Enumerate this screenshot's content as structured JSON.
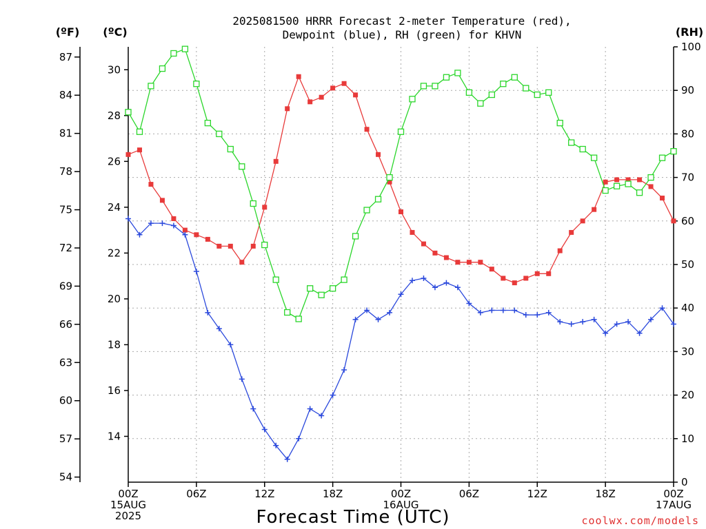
{
  "chart_data": {
    "type": "line",
    "title_lines": [
      "2025081500 HRRR Forecast 2-meter Temperature (red),",
      "Dewpoint (blue), RH (green) for KHVN"
    ],
    "xlabel": "Forecast Time (UTC)",
    "credit": "coolwx.com/models",
    "unit_labels": {
      "fahrenheit": "(ºF)",
      "celsius": "(ºC)",
      "rh": "(RH)"
    },
    "x_ticks": [
      {
        "hour": 0,
        "lines": [
          "00Z",
          "15AUG",
          "2025"
        ]
      },
      {
        "hour": 6,
        "lines": [
          "06Z"
        ]
      },
      {
        "hour": 12,
        "lines": [
          "12Z"
        ]
      },
      {
        "hour": 18,
        "lines": [
          "18Z"
        ]
      },
      {
        "hour": 24,
        "lines": [
          "00Z",
          "16AUG"
        ]
      },
      {
        "hour": 30,
        "lines": [
          "06Z"
        ]
      },
      {
        "hour": 36,
        "lines": [
          "12Z"
        ]
      },
      {
        "hour": 42,
        "lines": [
          "18Z"
        ]
      },
      {
        "hour": 48,
        "lines": [
          "00Z",
          "17AUG"
        ]
      }
    ],
    "xlim": [
      0,
      48
    ],
    "celsius_axis": {
      "ylim": [
        12,
        31
      ],
      "ticks": [
        "14",
        "16",
        "18",
        "20",
        "22",
        "24",
        "26",
        "28",
        "30"
      ]
    },
    "fahrenheit_ticks": [
      "54",
      "57",
      "60",
      "63",
      "66",
      "69",
      "72",
      "75",
      "78",
      "81",
      "84",
      "87"
    ],
    "rh_axis": {
      "ylim": [
        0,
        100
      ],
      "ticks": [
        "0",
        "10",
        "20",
        "30",
        "40",
        "50",
        "60",
        "70",
        "80",
        "90",
        "100"
      ]
    },
    "series": [
      {
        "name": "2-meter Temperature",
        "color": "#e83a3a",
        "marker": "filled-square",
        "axis": "celsius",
        "values": [
          26.3,
          26.5,
          25.0,
          24.3,
          23.5,
          23.0,
          22.8,
          22.6,
          22.3,
          22.3,
          21.6,
          22.3,
          24.0,
          26.0,
          28.3,
          29.7,
          28.6,
          28.8,
          29.2,
          29.4,
          28.9,
          27.4,
          26.3,
          25.1,
          23.8,
          22.9,
          22.4,
          22.0,
          21.8,
          21.6,
          21.6,
          21.6,
          21.3,
          20.9,
          20.7,
          20.9,
          21.1,
          21.1,
          22.1,
          22.9,
          23.4,
          23.9,
          25.1,
          25.2,
          25.2,
          25.2,
          24.9,
          24.4,
          23.4
        ]
      },
      {
        "name": "Dewpoint",
        "color": "#2a48dc",
        "marker": "plus",
        "axis": "celsius",
        "values": [
          23.5,
          22.8,
          23.3,
          23.3,
          23.2,
          22.8,
          21.2,
          19.4,
          18.7,
          18.0,
          16.5,
          15.2,
          14.3,
          13.6,
          13.0,
          13.9,
          15.2,
          14.9,
          15.8,
          16.9,
          19.1,
          19.5,
          19.1,
          19.4,
          20.2,
          20.8,
          20.9,
          20.5,
          20.7,
          20.5,
          19.8,
          19.4,
          19.5,
          19.5,
          19.5,
          19.3,
          19.3,
          19.4,
          19.0,
          18.9,
          19.0,
          19.1,
          18.5,
          18.9,
          19.0,
          18.5,
          19.1,
          19.6,
          18.9
        ]
      },
      {
        "name": "RH",
        "color": "#2ad62a",
        "marker": "open-square",
        "axis": "rh",
        "values": [
          85,
          80.5,
          91,
          95,
          98.5,
          99.5,
          91.5,
          82.5,
          80,
          76.5,
          72.5,
          64,
          54.5,
          46.5,
          39,
          37.5,
          44.5,
          43,
          44.5,
          46.5,
          56.5,
          62.5,
          65,
          70,
          80.5,
          88,
          91,
          91,
          93,
          94,
          89.5,
          87,
          89,
          91.5,
          93,
          90.5,
          89,
          89.5,
          82.5,
          78,
          76.5,
          74.5,
          67,
          68,
          68.5,
          66.5,
          70,
          74.5,
          76
        ]
      }
    ]
  }
}
